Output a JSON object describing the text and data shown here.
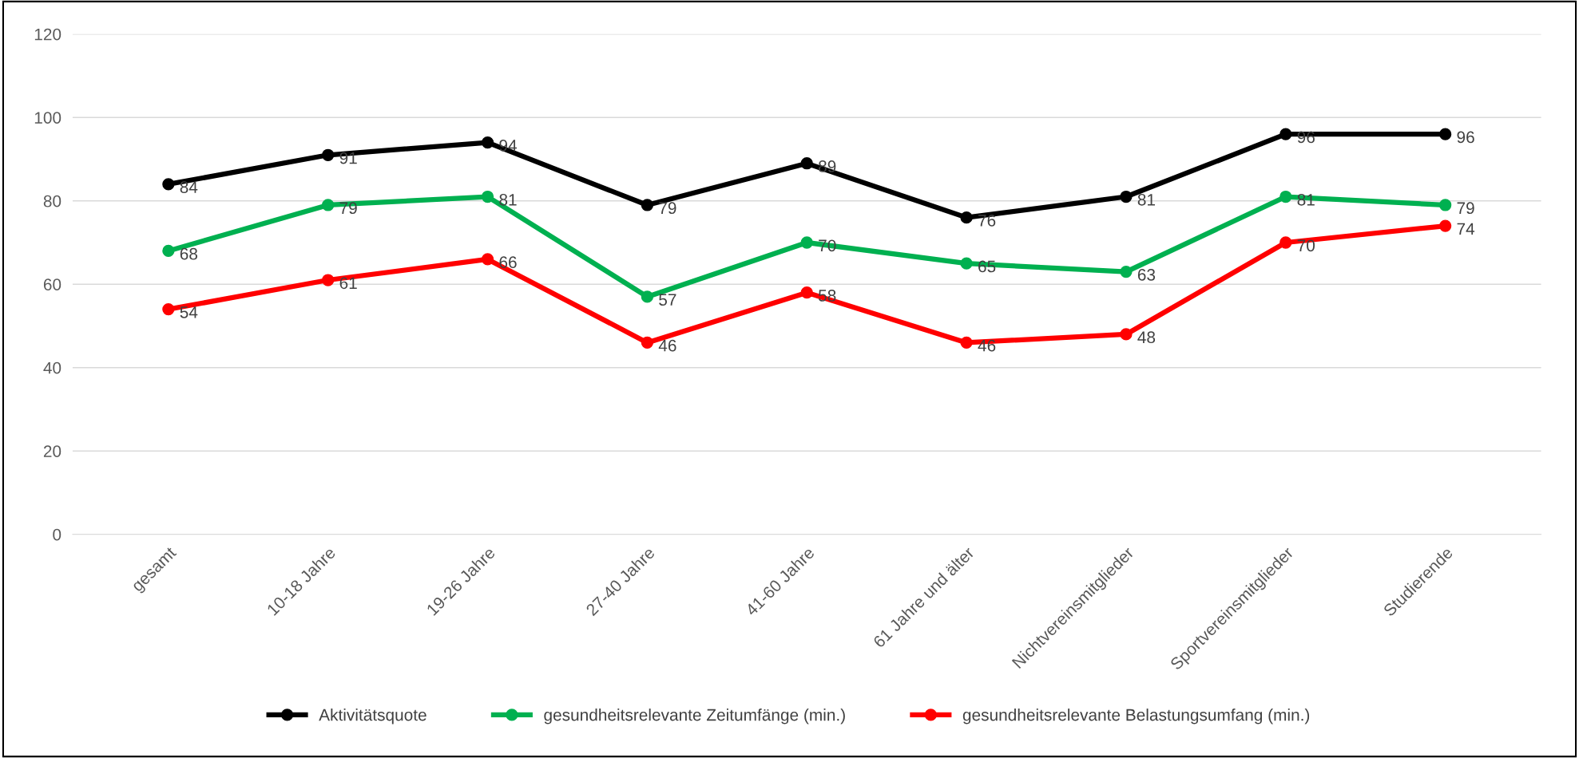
{
  "chart_data": {
    "type": "line",
    "categories": [
      "gesamt",
      "10-18 Jahre",
      "19-26 Jahre",
      "27-40 Jahre",
      "41-60 Jahre",
      "61 Jahre und älter",
      "Nichtvereinsmitglieder",
      "Sportvereinsmitglieder",
      "Studierende"
    ],
    "series": [
      {
        "name": "Aktivitätsquote",
        "color": "#000000",
        "values": [
          84,
          91,
          94,
          79,
          89,
          76,
          81,
          96,
          96
        ]
      },
      {
        "name": "gesundheitsrelevante Zeitumfänge (min.)",
        "color": "#00b050",
        "values": [
          68,
          79,
          81,
          57,
          70,
          65,
          63,
          81,
          79
        ]
      },
      {
        "name": "gesundheitsrelevante Belastungsumfang (min.)",
        "color": "#ff0000",
        "values": [
          54,
          61,
          66,
          46,
          58,
          46,
          48,
          70,
          74
        ]
      }
    ],
    "ylim": [
      0,
      120
    ],
    "yticks": [
      0,
      20,
      40,
      60,
      80,
      100,
      120
    ],
    "grid": "y",
    "legend": "bottom",
    "marker": "circle",
    "line_style": "solid",
    "data_labels": true
  }
}
